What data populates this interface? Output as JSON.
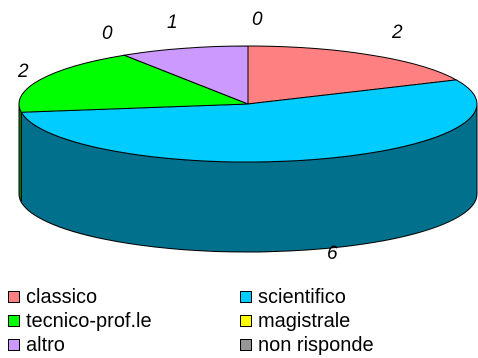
{
  "chart_data": {
    "type": "pie",
    "style": "3d",
    "categories": [
      "classico",
      "scientifico",
      "tecnico-prof.le",
      "magistrale",
      "altro",
      "non risponde"
    ],
    "values": [
      2,
      6,
      2,
      0,
      1,
      0
    ],
    "data_labels": [
      "2",
      "6",
      "2",
      "0",
      "1",
      "0"
    ],
    "colors": [
      "#ff8080",
      "#00ccff",
      "#00ff00",
      "#ffff00",
      "#cc99ff",
      "#969696"
    ],
    "legend_position": "bottom"
  }
}
